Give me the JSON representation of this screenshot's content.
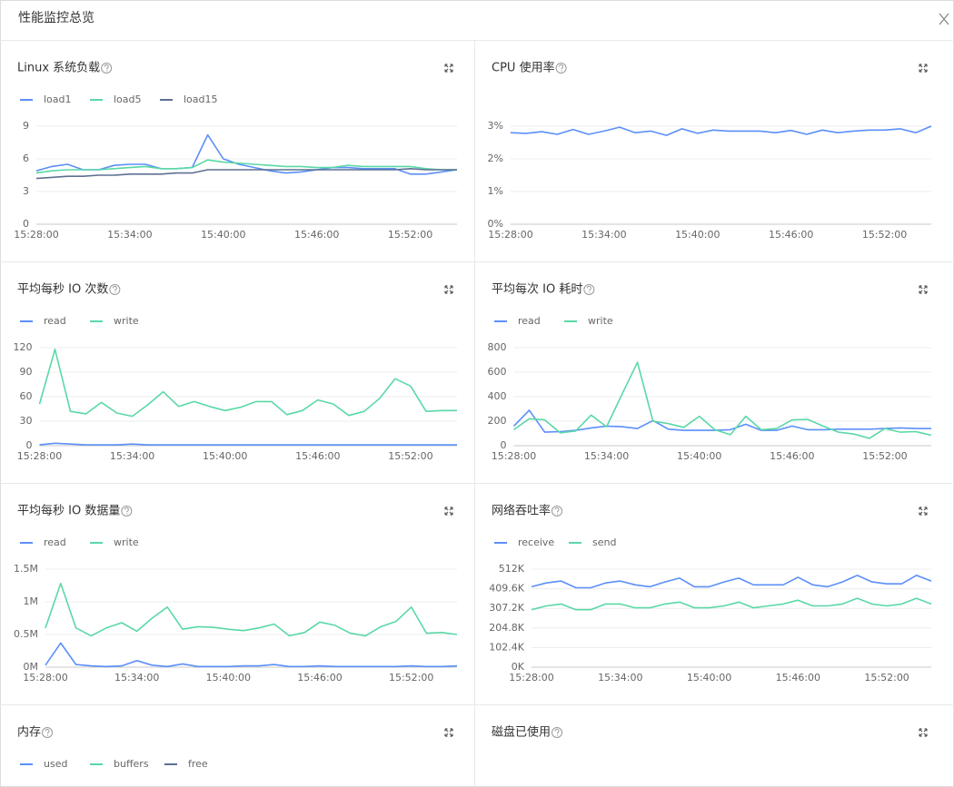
{
  "header": {
    "title": "性能监控总览"
  },
  "chart_data": [
    {
      "type": "line",
      "title": "Linux 系统负载",
      "categories": [
        "15:28:00",
        null,
        null,
        null,
        null,
        null,
        "15:34:00",
        null,
        null,
        null,
        null,
        null,
        "15:40:00",
        null,
        null,
        null,
        null,
        null,
        "15:46:00",
        null,
        null,
        null,
        null,
        null,
        "15:52:00",
        null,
        null,
        null
      ],
      "series": [
        {
          "name": "load1",
          "color": "#5b8ff9",
          "values": [
            4.9,
            5.3,
            5.5,
            5.0,
            5.0,
            5.4,
            5.5,
            5.5,
            5.1,
            5.1,
            5.2,
            8.2,
            6.0,
            5.5,
            5.2,
            4.9,
            4.7,
            4.8,
            5.0,
            5.2,
            5.2,
            5.1,
            5.1,
            5.1,
            4.6,
            4.6,
            4.8,
            5.0
          ]
        },
        {
          "name": "load5",
          "color": "#5ad8a6",
          "values": [
            4.7,
            4.9,
            5.0,
            5.0,
            5.0,
            5.1,
            5.2,
            5.3,
            5.1,
            5.1,
            5.2,
            5.9,
            5.7,
            5.6,
            5.5,
            5.4,
            5.3,
            5.3,
            5.2,
            5.2,
            5.4,
            5.3,
            5.3,
            5.3,
            5.3,
            5.1,
            5.0,
            5.0
          ]
        },
        {
          "name": "load15",
          "color": "#5d7092",
          "values": [
            4.2,
            4.3,
            4.4,
            4.4,
            4.5,
            4.5,
            4.6,
            4.6,
            4.6,
            4.7,
            4.7,
            5.0,
            5.0,
            5.0,
            5.0,
            5.0,
            5.0,
            5.0,
            5.0,
            5.0,
            5.0,
            5.0,
            5.0,
            5.0,
            5.1,
            5.0,
            5.0,
            5.0
          ]
        }
      ],
      "ylim": [
        0,
        9
      ],
      "yticks": [
        0,
        3,
        6,
        9
      ],
      "grid": true
    },
    {
      "type": "line",
      "title": "CPU 使用率",
      "categories": [
        "15:28:00",
        null,
        null,
        null,
        null,
        null,
        "15:34:00",
        null,
        null,
        null,
        null,
        null,
        "15:40:00",
        null,
        null,
        null,
        null,
        null,
        "15:46:00",
        null,
        null,
        null,
        null,
        null,
        "15:52:00",
        null,
        null,
        null
      ],
      "series": [
        {
          "color": "#5b8ff9",
          "values": [
            2.8,
            2.78,
            2.83,
            2.75,
            2.9,
            2.75,
            2.85,
            2.97,
            2.8,
            2.85,
            2.72,
            2.92,
            2.78,
            2.88,
            2.85,
            2.85,
            2.85,
            2.8,
            2.87,
            2.75,
            2.88,
            2.8,
            2.85,
            2.88,
            2.88,
            2.92,
            2.8,
            3.0
          ]
        }
      ],
      "ylim": [
        0,
        3
      ],
      "yticks": [
        {
          "value": 0,
          "label": "0%"
        },
        {
          "value": 1,
          "label": "1%"
        },
        {
          "value": 2,
          "label": "2%"
        },
        {
          "value": 3,
          "label": "3%"
        }
      ],
      "grid": true
    },
    {
      "type": "line",
      "title": "平均每秒 IO 次数",
      "categories": [
        "15:28:00",
        null,
        null,
        null,
        null,
        null,
        "15:34:00",
        null,
        null,
        null,
        null,
        null,
        "15:40:00",
        null,
        null,
        null,
        null,
        null,
        "15:46:00",
        null,
        null,
        null,
        null,
        null,
        "15:52:00",
        null,
        null,
        null
      ],
      "series": [
        {
          "name": "read",
          "color": "#5b8ff9",
          "values": [
            1,
            3,
            2,
            1,
            1,
            1,
            2,
            1,
            1,
            1,
            1,
            1,
            1,
            1,
            1,
            1,
            1,
            1,
            1,
            1,
            1,
            1,
            1,
            1,
            1,
            1,
            1,
            1
          ]
        },
        {
          "name": "write",
          "color": "#5ad8a6",
          "values": [
            51,
            118,
            42,
            39,
            53,
            40,
            36,
            50,
            66,
            48,
            54,
            48,
            43,
            47,
            54,
            54,
            38,
            43,
            56,
            51,
            37,
            42,
            58,
            82,
            73,
            42,
            43,
            43
          ]
        }
      ],
      "ylim": [
        0,
        120
      ],
      "yticks": [
        0,
        30,
        60,
        90,
        120
      ],
      "grid": true
    },
    {
      "type": "line",
      "title": "平均每次 IO 耗时",
      "categories": [
        "15:28:00",
        null,
        null,
        null,
        null,
        null,
        "15:34:00",
        null,
        null,
        null,
        null,
        null,
        "15:40:00",
        null,
        null,
        null,
        null,
        null,
        "15:46:00",
        null,
        null,
        null,
        null,
        null,
        "15:52:00",
        null,
        null,
        null
      ],
      "series": [
        {
          "name": "read",
          "color": "#5b8ff9",
          "values": [
            160,
            290,
            110,
            115,
            125,
            145,
            160,
            155,
            140,
            205,
            135,
            125,
            125,
            125,
            130,
            175,
            125,
            125,
            160,
            130,
            130,
            135,
            135,
            135,
            140,
            145,
            140,
            140
          ]
        },
        {
          "name": "write",
          "color": "#5ad8a6",
          "values": [
            130,
            220,
            210,
            105,
            120,
            250,
            155,
            420,
            680,
            200,
            180,
            150,
            240,
            130,
            90,
            240,
            130,
            140,
            210,
            215,
            160,
            110,
            95,
            60,
            140,
            110,
            115,
            85
          ]
        }
      ],
      "ylim": [
        0,
        800
      ],
      "yticks": [
        0,
        200,
        400,
        600,
        800
      ],
      "grid": true
    },
    {
      "type": "line",
      "title": "平均每秒 IO 数据量",
      "categories": [
        "15:28:00",
        null,
        null,
        null,
        null,
        null,
        "15:34:00",
        null,
        null,
        null,
        null,
        null,
        "15:40:00",
        null,
        null,
        null,
        null,
        null,
        "15:46:00",
        null,
        null,
        null,
        null,
        null,
        "15:52:00",
        null,
        null,
        null
      ],
      "series": [
        {
          "name": "read",
          "color": "#5b8ff9",
          "values": [
            0.03,
            0.37,
            0.04,
            0.02,
            0.01,
            0.02,
            0.1,
            0.03,
            0.01,
            0.05,
            0.01,
            0.01,
            0.01,
            0.02,
            0.02,
            0.04,
            0.01,
            0.01,
            0.02,
            0.01,
            0.01,
            0.01,
            0.01,
            0.01,
            0.02,
            0.01,
            0.01,
            0.02
          ]
        },
        {
          "name": "write",
          "color": "#5ad8a6",
          "values": [
            0.6,
            1.28,
            0.6,
            0.48,
            0.6,
            0.68,
            0.55,
            0.75,
            0.92,
            0.58,
            0.62,
            0.61,
            0.58,
            0.56,
            0.6,
            0.66,
            0.48,
            0.53,
            0.69,
            0.64,
            0.52,
            0.48,
            0.62,
            0.7,
            0.92,
            0.52,
            0.53,
            0.5
          ]
        }
      ],
      "ylim": [
        0,
        1.5
      ],
      "yticks": [
        {
          "value": 0,
          "label": "0M"
        },
        {
          "value": 0.5,
          "label": "0.5M"
        },
        {
          "value": 1,
          "label": "1M"
        },
        {
          "value": 1.5,
          "label": "1.5M"
        }
      ],
      "grid": true
    },
    {
      "type": "line",
      "title": "网络吞吐率",
      "categories": [
        "15:28:00",
        null,
        null,
        null,
        null,
        null,
        "15:34:00",
        null,
        null,
        null,
        null,
        null,
        "15:40:00",
        null,
        null,
        null,
        null,
        null,
        "15:46:00",
        null,
        null,
        null,
        null,
        null,
        "15:52:00",
        null,
        null,
        null
      ],
      "series": [
        {
          "name": "receive",
          "color": "#5b8ff9",
          "values": [
            420,
            440,
            450,
            415,
            415,
            440,
            450,
            430,
            420,
            445,
            465,
            420,
            420,
            445,
            465,
            430,
            430,
            430,
            470,
            430,
            420,
            445,
            480,
            445,
            435,
            435,
            480,
            450
          ]
        },
        {
          "name": "send",
          "color": "#5ad8a6",
          "values": [
            300,
            320,
            330,
            300,
            300,
            330,
            330,
            310,
            310,
            330,
            340,
            310,
            310,
            320,
            340,
            310,
            320,
            330,
            350,
            320,
            320,
            330,
            360,
            330,
            320,
            330,
            360,
            330
          ]
        }
      ],
      "ylim": [
        0,
        512
      ],
      "yticks": [
        {
          "value": 0,
          "label": "0K"
        },
        {
          "value": 102.4,
          "label": "102.4K"
        },
        {
          "value": 204.8,
          "label": "204.8K"
        },
        {
          "value": 307.2,
          "label": "307.2K"
        },
        {
          "value": 409.6,
          "label": "409.6K"
        },
        {
          "value": 512,
          "label": "512K"
        }
      ],
      "grid": true
    },
    {
      "type": "line",
      "title": "内存",
      "series": [
        {
          "name": "used",
          "color": "#5b8ff9"
        },
        {
          "name": "buffers",
          "color": "#5ad8a6"
        },
        {
          "name": "free",
          "color": "#5d7092"
        }
      ]
    },
    {
      "type": "line",
      "title": "磁盘已使用"
    }
  ]
}
